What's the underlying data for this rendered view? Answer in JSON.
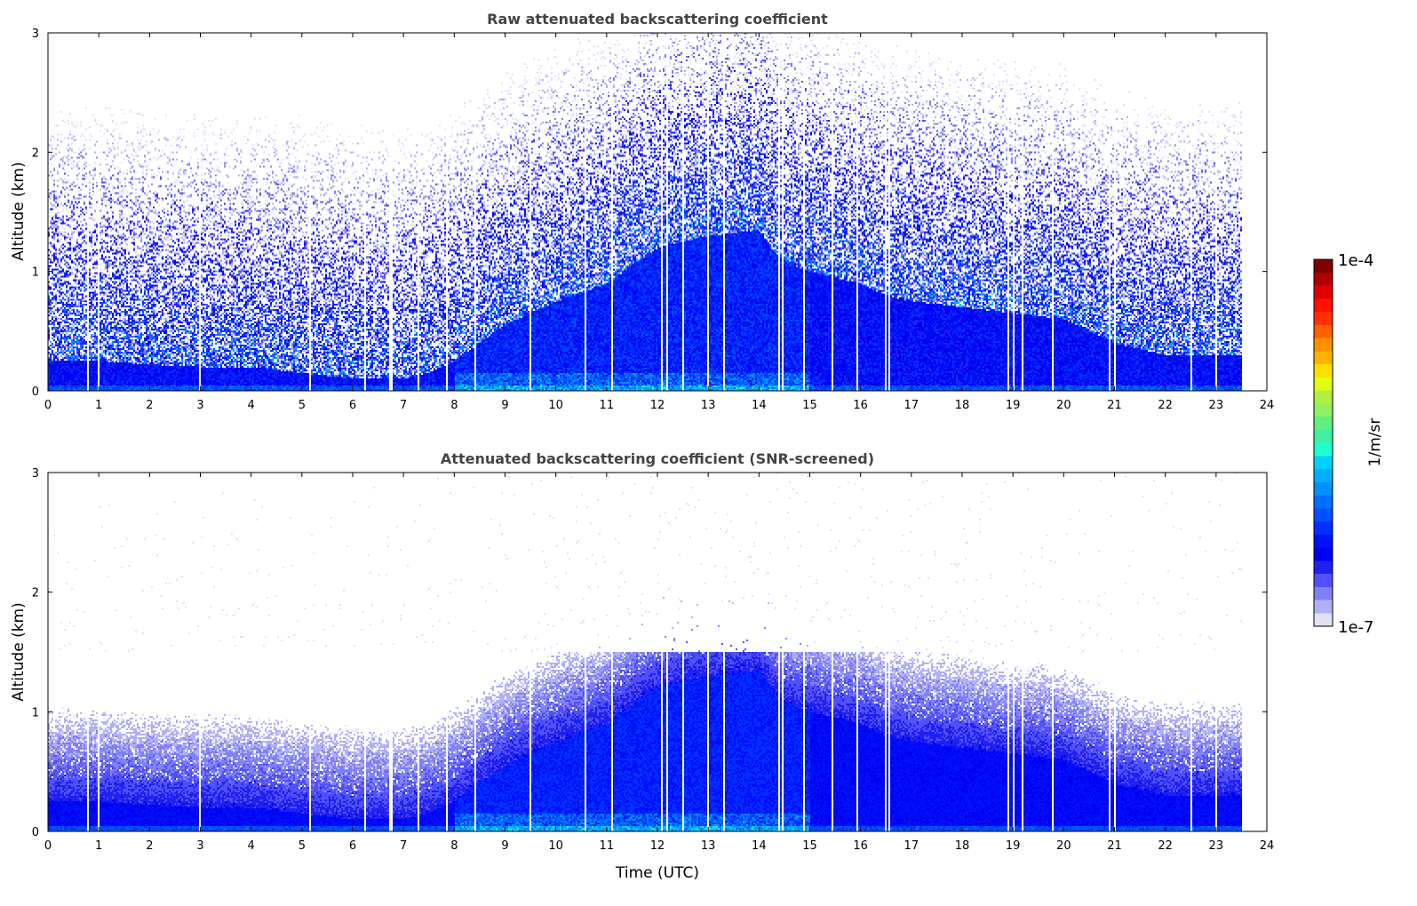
{
  "chart_data": [
    {
      "type": "heatmap",
      "title": "Raw attenuated backscattering coefficient",
      "xlabel": "",
      "ylabel": "Altitude (km)",
      "xlim": [
        0,
        24
      ],
      "ylim": [
        0,
        3
      ],
      "xticks": [
        "0",
        "1",
        "2",
        "3",
        "4",
        "5",
        "6",
        "7",
        "8",
        "9",
        "10",
        "11",
        "12",
        "13",
        "14",
        "15",
        "16",
        "17",
        "18",
        "19",
        "20",
        "21",
        "22",
        "23",
        "24"
      ],
      "yticks": [
        "0",
        "1",
        "2",
        "3"
      ],
      "screened": false
    },
    {
      "type": "heatmap",
      "title": "Attenuated backscattering coefficient (SNR-screened)",
      "xlabel": "Time (UTC)",
      "ylabel": "Altitude (km)",
      "xlim": [
        0,
        24
      ],
      "ylim": [
        0,
        3
      ],
      "xticks": [
        "0",
        "1",
        "2",
        "3",
        "4",
        "5",
        "6",
        "7",
        "8",
        "9",
        "10",
        "11",
        "12",
        "13",
        "14",
        "15",
        "16",
        "17",
        "18",
        "19",
        "20",
        "21",
        "22",
        "23",
        "24"
      ],
      "yticks": [
        "0",
        "1",
        "2",
        "3"
      ],
      "screened": true
    }
  ],
  "shared": {
    "data_end_hour": 23.5,
    "layer_top_km": {
      "hours": [
        0,
        1,
        2,
        3,
        4,
        5,
        6,
        7,
        7.5,
        8,
        8.5,
        9,
        10,
        11,
        12,
        13,
        14,
        14.4,
        15,
        16,
        16.5,
        17,
        18,
        19,
        20,
        21,
        22,
        23,
        23.5
      ],
      "values": [
        0.25,
        0.25,
        0.22,
        0.2,
        0.2,
        0.15,
        0.1,
        0.1,
        0.15,
        0.25,
        0.4,
        0.55,
        0.75,
        0.9,
        1.2,
        1.3,
        1.35,
        1.1,
        1.0,
        0.9,
        0.8,
        0.75,
        0.7,
        0.65,
        0.6,
        0.4,
        0.3,
        0.3,
        0.3
      ]
    },
    "data_gaps_hours": [
      0.8,
      1.0,
      3.0,
      5.15,
      6.25,
      6.75,
      6.78,
      7.3,
      7.85,
      8.4,
      9.5,
      10.6,
      11.1,
      12.1,
      12.2,
      12.5,
      13.0,
      13.3,
      14.4,
      14.45,
      14.9,
      15.45,
      15.95,
      16.5,
      16.55,
      18.9,
      19.0,
      19.2,
      19.8,
      20.9,
      21.0,
      22.5,
      23.0
    ]
  },
  "colorbar": {
    "label": "1/m/sr",
    "max_label": "1e-4",
    "min_label": "1e-7",
    "scale": "log",
    "range_log10": [
      -7,
      -4
    ],
    "colors": [
      "#e0e0f8",
      "#b0b0f8",
      "#8080f8",
      "#5050f8",
      "#2020f0",
      "#0000f0",
      "#0010f8",
      "#0030ff",
      "#0050ff",
      "#0070ff",
      "#0090ff",
      "#00b0ff",
      "#00d0ff",
      "#20ffd0",
      "#40f0a0",
      "#60f080",
      "#90f060",
      "#b0f040",
      "#e0ff10",
      "#ffe000",
      "#ffb000",
      "#ff9000",
      "#ff6000",
      "#ff3000",
      "#ff1000",
      "#e00000",
      "#b00000",
      "#800000"
    ]
  }
}
